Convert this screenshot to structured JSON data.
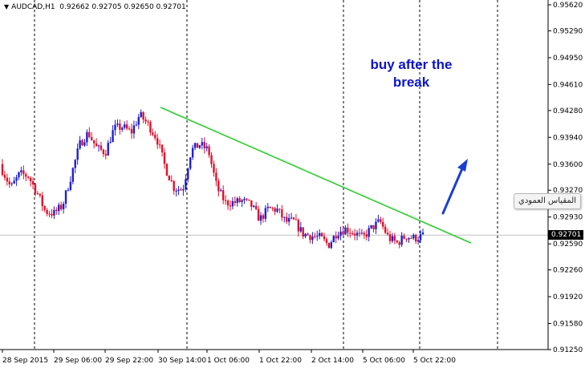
{
  "header": {
    "symbol": "AUDCAD,H1",
    "quote": "0.92662 0.92705 0.92650 0.92701"
  },
  "annotation": {
    "line1": "buy after the",
    "line2": "break"
  },
  "tooltip": "المقياس العمودي",
  "current_price_label": "0.92701",
  "colors": {
    "bull": "#1f1fd0",
    "bear": "#e0102c",
    "trendline": "#2ecc2e",
    "arrow": "#1a3fd0",
    "annotation": "#0a14c8"
  },
  "chart_data": {
    "type": "candlestick",
    "title": "AUDCAD,H1",
    "ylim": [
      0.9125,
      0.9562
    ],
    "y_ticks": [
      "0.95620",
      "0.95290",
      "0.94950",
      "0.94610",
      "0.94280",
      "0.93940",
      "0.93600",
      "0.93270",
      "0.92930",
      "0.92590",
      "0.92260",
      "0.91920",
      "0.91580",
      "0.91250"
    ],
    "x_ticks": [
      "28 Sep 2015",
      "29 Sep 06:00",
      "29 Sep 22:00",
      "30 Sep 14:00",
      "1 Oct 06:00",
      "1 Oct 22:00",
      "2 Oct 14:00",
      "5 Oct 06:00",
      "5 Oct 22:00"
    ],
    "current_price": 0.92701,
    "trendline": {
      "from": {
        "bar": 0,
        "price": 0.9432
      },
      "to": {
        "bar": 1000,
        "price": 0.926
      }
    },
    "price_path": [
      [
        0.936,
        0.9345
      ],
      [
        0.9325,
        0.9335
      ],
      [
        0.934,
        0.9355
      ],
      [
        0.935,
        0.934
      ],
      [
        0.933,
        0.932
      ],
      [
        0.9305,
        0.9295
      ],
      [
        0.929,
        0.9305
      ],
      [
        0.931,
        0.9305
      ],
      [
        0.9335,
        0.9355
      ],
      [
        0.9375,
        0.9395
      ],
      [
        0.9405,
        0.9395
      ],
      [
        0.937,
        0.939
      ],
      [
        0.937,
        0.938
      ],
      [
        0.9395,
        0.9415
      ],
      [
        0.941,
        0.9405
      ],
      [
        0.9395,
        0.9405
      ],
      [
        0.9425,
        0.942
      ],
      [
        0.9415,
        0.9405
      ],
      [
        0.94,
        0.9385
      ],
      [
        0.936,
        0.935
      ],
      [
        0.9335,
        0.9325
      ],
      [
        0.9315,
        0.934
      ],
      [
        0.937,
        0.9385
      ],
      [
        0.938,
        0.939
      ],
      [
        0.9385,
        0.937
      ],
      [
        0.9345,
        0.9315
      ],
      [
        0.931,
        0.9312
      ],
      [
        0.9315,
        0.9308
      ],
      [
        0.9312,
        0.9315
      ],
      [
        0.9305,
        0.931
      ],
      [
        0.9295,
        0.9285
      ],
      [
        0.9302,
        0.9305
      ],
      [
        0.931,
        0.9295
      ],
      [
        0.9292,
        0.9282
      ],
      [
        0.9283,
        0.9292
      ],
      [
        0.9272,
        0.9272
      ],
      [
        0.9262,
        0.9276
      ],
      [
        0.9272,
        0.9262
      ],
      [
        0.925,
        0.9265
      ],
      [
        0.9268,
        0.928
      ],
      [
        0.9276,
        0.928
      ],
      [
        0.9272,
        0.9274
      ],
      [
        0.9265,
        0.9268
      ],
      [
        0.9276,
        0.9282
      ],
      [
        0.9295,
        0.928
      ],
      [
        0.9268,
        0.9265
      ],
      [
        0.9255,
        0.9265
      ],
      [
        0.9268,
        0.927
      ],
      [
        0.927,
        0.9262
      ],
      [
        0.9268,
        0.927
      ]
    ]
  }
}
